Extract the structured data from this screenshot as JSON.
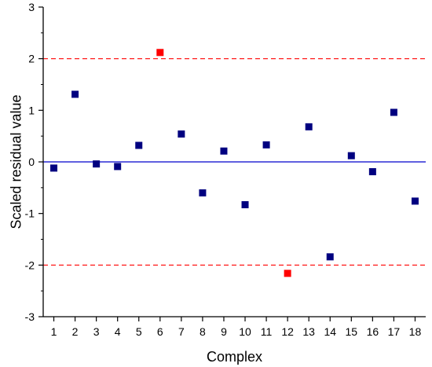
{
  "chart_data": {
    "type": "scatter",
    "xlabel": "Complex",
    "ylabel": "Scaled residual value",
    "xlim": [
      0.5,
      18.5
    ],
    "ylim": [
      -3,
      3
    ],
    "x_ticks": [
      1,
      2,
      3,
      4,
      5,
      6,
      7,
      8,
      9,
      10,
      11,
      12,
      13,
      14,
      15,
      16,
      17,
      18
    ],
    "y_ticks": [
      -3,
      -2,
      -1,
      0,
      1,
      2,
      3
    ],
    "grid": false,
    "reference_lines": [
      {
        "y": 0,
        "style": "solid",
        "color": "#0000cc"
      },
      {
        "y": 2,
        "style": "dashed",
        "color": "#ff0000"
      },
      {
        "y": -2,
        "style": "dashed",
        "color": "#ff0000"
      }
    ],
    "colors": {
      "normal": "#000080",
      "outlier": "#ff0000"
    },
    "points": [
      {
        "x": 1,
        "y": -0.12,
        "outlier": false
      },
      {
        "x": 2,
        "y": 1.31,
        "outlier": false
      },
      {
        "x": 3,
        "y": -0.04,
        "outlier": false
      },
      {
        "x": 4,
        "y": -0.09,
        "outlier": false
      },
      {
        "x": 5,
        "y": 0.32,
        "outlier": false
      },
      {
        "x": 6,
        "y": 2.12,
        "outlier": true
      },
      {
        "x": 7,
        "y": 0.54,
        "outlier": false
      },
      {
        "x": 8,
        "y": -0.6,
        "outlier": false
      },
      {
        "x": 9,
        "y": 0.21,
        "outlier": false
      },
      {
        "x": 10,
        "y": -0.83,
        "outlier": false
      },
      {
        "x": 11,
        "y": 0.33,
        "outlier": false
      },
      {
        "x": 12,
        "y": -2.16,
        "outlier": true
      },
      {
        "x": 13,
        "y": 0.68,
        "outlier": false
      },
      {
        "x": 14,
        "y": -1.84,
        "outlier": false
      },
      {
        "x": 15,
        "y": 0.12,
        "outlier": false
      },
      {
        "x": 16,
        "y": -0.19,
        "outlier": false
      },
      {
        "x": 17,
        "y": 0.96,
        "outlier": false
      },
      {
        "x": 18,
        "y": -0.76,
        "outlier": false
      }
    ]
  }
}
